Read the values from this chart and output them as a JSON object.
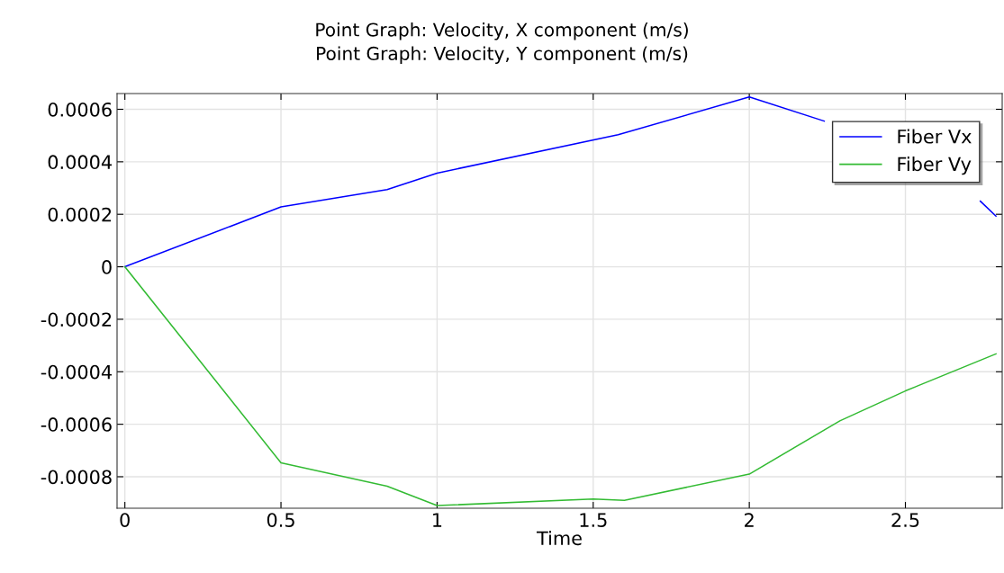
{
  "chart_data": {
    "type": "line",
    "title": "Point Graph: Velocity, X component (m/s)\nPoint Graph: Velocity, Y component (m/s)",
    "xlabel": "Time",
    "series": [
      {
        "name": "Fiber Vx",
        "color": "#0000ff",
        "x": [
          0,
          0.5,
          0.84,
          1,
          1.58,
          2,
          2.24,
          2.5,
          2.74,
          2.79
        ],
        "values": [
          0,
          0.000228,
          0.000294,
          0.000357,
          0.000503,
          0.000647,
          0.000555,
          null,
          0.00025,
          0.000193
        ]
      },
      {
        "name": "Fiber Vy",
        "color": "#33bb33",
        "x": [
          0,
          0.5,
          0.84,
          1,
          1.5,
          1.6,
          2,
          2.29,
          2.5,
          2.79
        ],
        "values": [
          0,
          -0.000747,
          -0.000836,
          -0.00091,
          -0.000885,
          -0.00089,
          -0.00079,
          -0.000587,
          -0.000473,
          -0.000332
        ]
      }
    ],
    "xlim": [
      -0.025,
      2.81
    ],
    "ylim": [
      -0.00092,
      0.00066
    ],
    "xticks": [
      0,
      0.5,
      1,
      1.5,
      2,
      2.5
    ],
    "yticks": [
      {
        "value": -0.0008,
        "label": "-0.0008"
      },
      {
        "value": -0.0006,
        "label": "-0.0006"
      },
      {
        "value": -0.0004,
        "label": "-0.0004"
      },
      {
        "value": -0.0002,
        "label": "-0.0002"
      },
      0,
      {
        "value": 0.0002,
        "label": "0.0002"
      },
      {
        "value": 0.0004,
        "label": "0.0004"
      },
      {
        "value": 0.0006,
        "label": "0.0006"
      }
    ],
    "grid": true,
    "legend": "top right",
    "line_style": "solid",
    "marker": "none"
  }
}
